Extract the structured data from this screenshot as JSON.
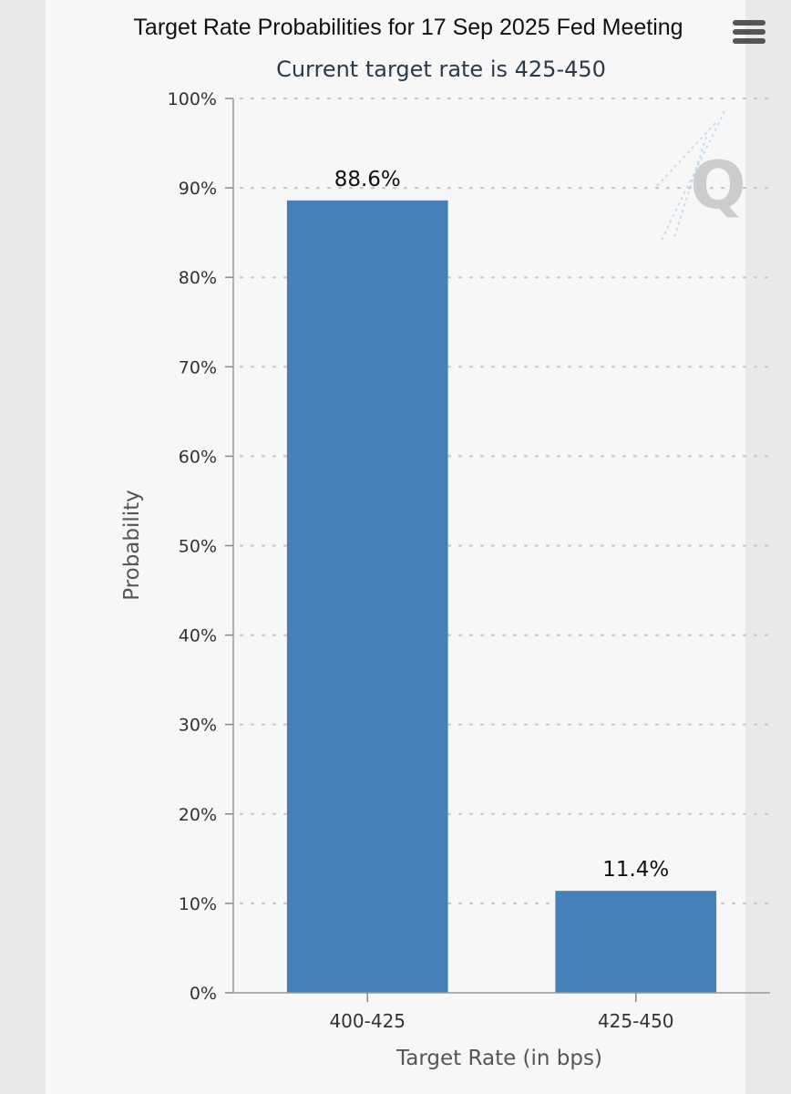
{
  "chart_data": {
    "type": "bar",
    "title": "Target Rate Probabilities for 17 Sep 2025 Fed Meeting",
    "subtitle": "Current target rate is 425-450",
    "xlabel": "Target Rate (in bps)",
    "ylabel": "Probability",
    "categories": [
      "400-425",
      "425-450"
    ],
    "values": [
      88.6,
      11.4
    ],
    "data_labels": [
      "88.6%",
      "11.4%"
    ],
    "ylim": [
      0,
      100
    ],
    "yticks": [
      0,
      10,
      20,
      30,
      40,
      50,
      60,
      70,
      80,
      90,
      100
    ],
    "ytick_labels": [
      "0%",
      "10%",
      "20%",
      "30%",
      "40%",
      "50%",
      "60%",
      "70%",
      "80%",
      "90%",
      "100%"
    ],
    "grid": true,
    "legend": "none",
    "bar_color": "#4580b8"
  },
  "menu": {
    "icon": "hamburger-menu-icon"
  },
  "watermark": {
    "icon": "q-logo-icon"
  }
}
